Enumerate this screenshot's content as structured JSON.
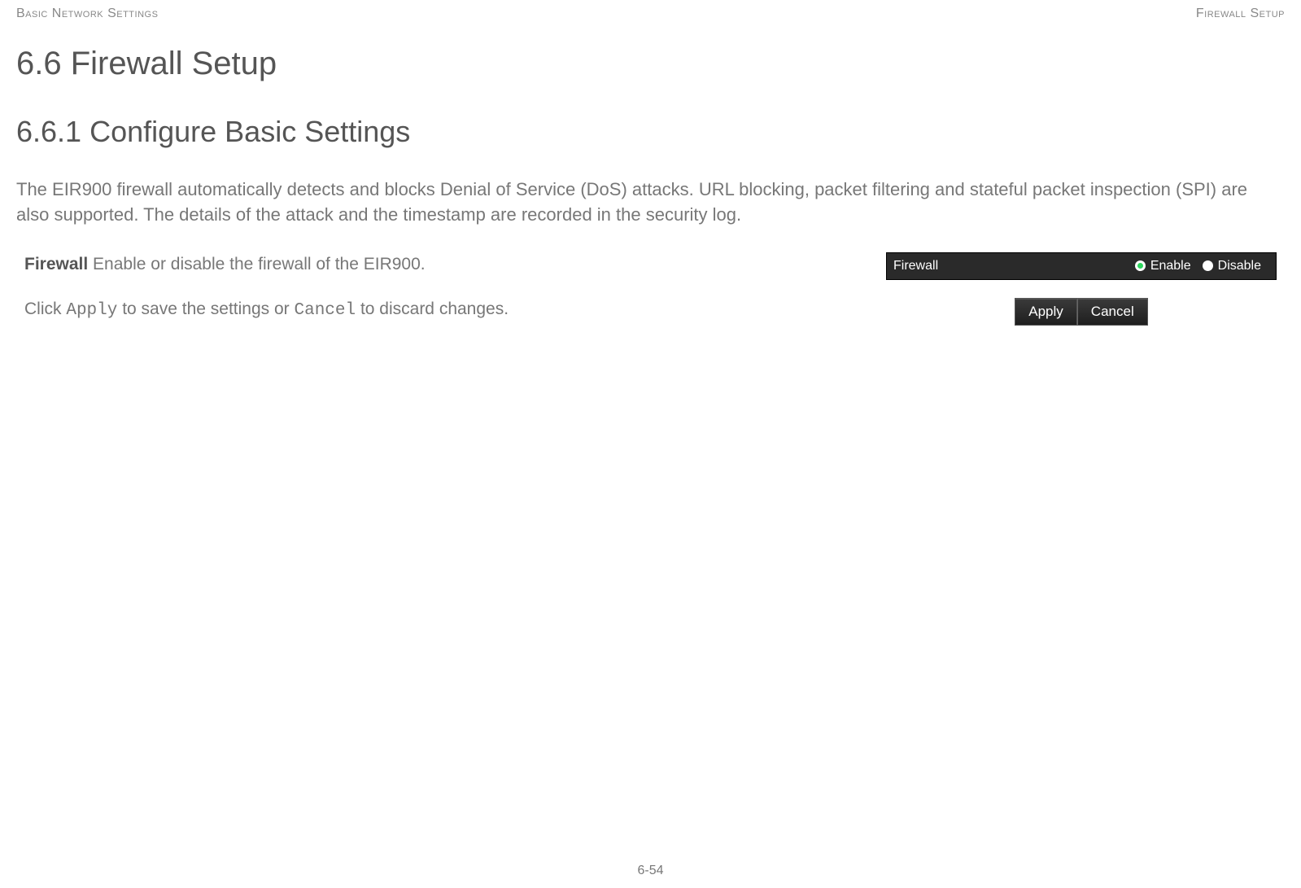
{
  "header": {
    "left": "Basic Network Settings",
    "right": "Firewall Setup"
  },
  "section": {
    "h1": "6.6 Firewall Setup",
    "h2": "6.6.1 Configure Basic Settings",
    "intro": "The EIR900 firewall automatically detects and blocks Denial of Service (DoS) attacks. URL blocking, packet filtering and stateful packet inspection (SPI) are also supported. The details of the attack and the timestamp are recorded in the security log."
  },
  "description": {
    "label": "Firewall",
    "text": "  Enable or disable the firewall of the EIR900."
  },
  "instruction": {
    "prefix": "Click ",
    "apply_code": "Apply",
    "mid": " to save the settings or ",
    "cancel_code": "Cancel",
    "suffix": " to discard changes."
  },
  "panel": {
    "label": "Firewall",
    "options": {
      "enable": "Enable",
      "disable": "Disable"
    },
    "selected": "enable",
    "background_color": "#2a2a2a",
    "text_color": "#ffffff",
    "radio_selected_color": "#2ed65e"
  },
  "buttons": {
    "apply": "Apply",
    "cancel": "Cancel",
    "background": "#2f2f2f",
    "text_color": "#ffffff"
  },
  "footer": {
    "page": "6-54"
  }
}
